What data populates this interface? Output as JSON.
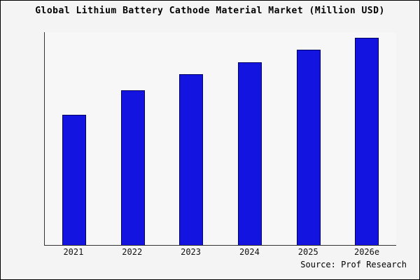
{
  "title": "Global Lithium Battery Cathode Material Market (Million USD)",
  "source": "Source: Prof Research",
  "colors": {
    "background": "#f4f4f4",
    "frame_border": "#000000",
    "axis": "#333333",
    "bar_fill": "#1414e0",
    "bar_border": "#000060"
  },
  "chart_data": {
    "type": "bar",
    "title": "Global Lithium Battery Cathode Material Market (Million USD)",
    "categories": [
      "2021",
      "2022",
      "2023",
      "2024",
      "2025",
      "2026e"
    ],
    "values": [
      64,
      76,
      84,
      90,
      96,
      102
    ],
    "xlabel": "",
    "ylabel": "",
    "ylim": [
      0,
      105
    ],
    "grid": false,
    "legend": false,
    "y_axis_ticks_visible": false,
    "annotation": "Source: Prof Research"
  }
}
